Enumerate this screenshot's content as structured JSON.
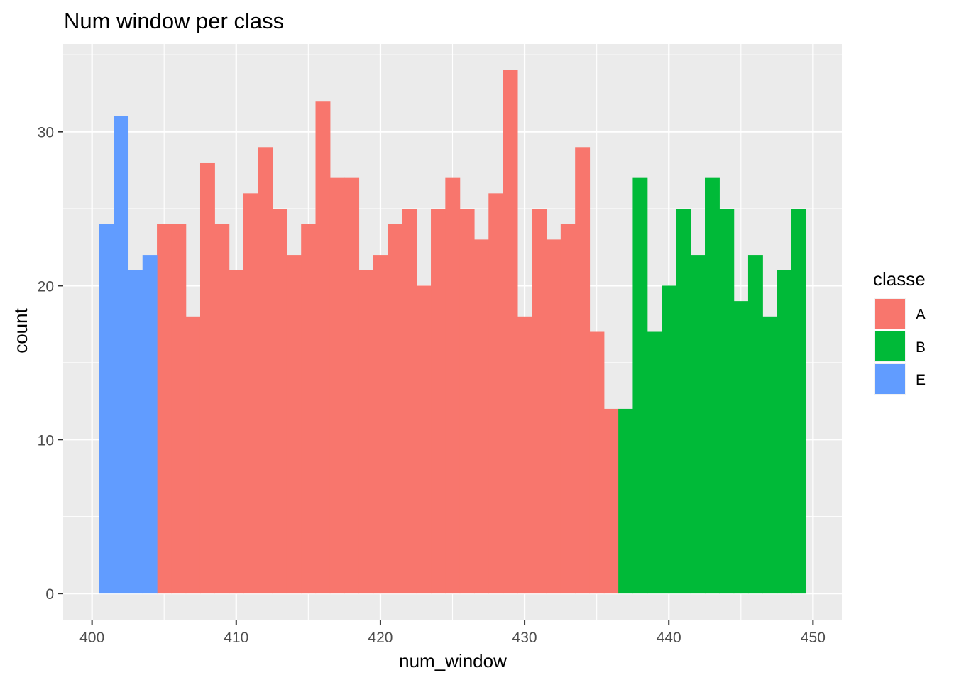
{
  "chart_data": {
    "type": "bar",
    "title": "Num window per class",
    "xlabel": "num_window",
    "ylabel": "count",
    "xlim": [
      398,
      452
    ],
    "ylim": [
      -1.7,
      35.7
    ],
    "xticks": [
      400,
      410,
      420,
      430,
      440,
      450
    ],
    "yticks": [
      0,
      10,
      20,
      30
    ],
    "grid": true,
    "bin_width": 1,
    "legend": {
      "title": "classe",
      "position": "right"
    },
    "series": [
      {
        "name": "A",
        "color": "#F8766D",
        "bins": [
          {
            "x": 405,
            "count": 24
          },
          {
            "x": 406,
            "count": 24
          },
          {
            "x": 407,
            "count": 18
          },
          {
            "x": 408,
            "count": 28
          },
          {
            "x": 409,
            "count": 24
          },
          {
            "x": 410,
            "count": 21
          },
          {
            "x": 411,
            "count": 26
          },
          {
            "x": 412,
            "count": 29
          },
          {
            "x": 413,
            "count": 25
          },
          {
            "x": 414,
            "count": 22
          },
          {
            "x": 415,
            "count": 24
          },
          {
            "x": 416,
            "count": 32
          },
          {
            "x": 417,
            "count": 27
          },
          {
            "x": 418,
            "count": 27
          },
          {
            "x": 419,
            "count": 21
          },
          {
            "x": 420,
            "count": 22
          },
          {
            "x": 421,
            "count": 24
          },
          {
            "x": 422,
            "count": 25
          },
          {
            "x": 423,
            "count": 20
          },
          {
            "x": 424,
            "count": 25
          },
          {
            "x": 425,
            "count": 27
          },
          {
            "x": 426,
            "count": 25
          },
          {
            "x": 427,
            "count": 23
          },
          {
            "x": 428,
            "count": 26
          },
          {
            "x": 429,
            "count": 34
          },
          {
            "x": 430,
            "count": 18
          },
          {
            "x": 431,
            "count": 25
          },
          {
            "x": 432,
            "count": 23
          },
          {
            "x": 433,
            "count": 24
          },
          {
            "x": 434,
            "count": 29
          },
          {
            "x": 435,
            "count": 17
          },
          {
            "x": 436,
            "count": 12
          }
        ]
      },
      {
        "name": "B",
        "color": "#00BA38",
        "bins": [
          {
            "x": 437,
            "count": 12
          },
          {
            "x": 438,
            "count": 27
          },
          {
            "x": 439,
            "count": 17
          },
          {
            "x": 440,
            "count": 20
          },
          {
            "x": 441,
            "count": 25
          },
          {
            "x": 442,
            "count": 22
          },
          {
            "x": 443,
            "count": 27
          },
          {
            "x": 444,
            "count": 25
          },
          {
            "x": 445,
            "count": 19
          },
          {
            "x": 446,
            "count": 22
          },
          {
            "x": 447,
            "count": 18
          },
          {
            "x": 448,
            "count": 21
          },
          {
            "x": 449,
            "count": 25
          }
        ]
      },
      {
        "name": "E",
        "color": "#619CFF",
        "bins": [
          {
            "x": 401,
            "count": 24
          },
          {
            "x": 402,
            "count": 31
          },
          {
            "x": 403,
            "count": 21
          },
          {
            "x": 404,
            "count": 22
          }
        ]
      }
    ]
  },
  "colors": {
    "panel_background": "#EBEBEB",
    "grid_major": "#FFFFFF",
    "text": "#000000",
    "tick_text": "#4D4D4D"
  }
}
